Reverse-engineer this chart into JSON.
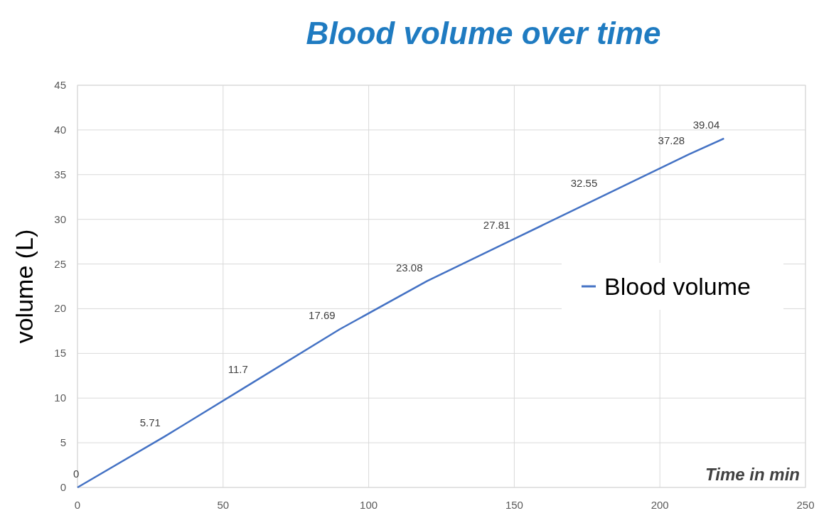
{
  "chart_data": {
    "type": "line",
    "title": "Blood volume over time",
    "xlabel": "Time in min",
    "ylabel": "volume (L)",
    "x": [
      0,
      30,
      60,
      90,
      120,
      150,
      180,
      210,
      222
    ],
    "series": [
      {
        "name": "Blood volume",
        "color": "#4472c4",
        "values": [
          0,
          5.71,
          11.7,
          17.69,
          23.08,
          27.81,
          32.55,
          37.28,
          39.04
        ]
      }
    ],
    "xlim": [
      0,
      250
    ],
    "xticks": [
      0,
      50,
      100,
      150,
      200,
      250
    ],
    "ylim": [
      0,
      45
    ],
    "yticks": [
      0,
      5,
      10,
      15,
      20,
      25,
      30,
      35,
      40,
      45
    ],
    "grid": true,
    "legend": "right",
    "data_labels": true,
    "marker": "none",
    "line_style": "solid"
  }
}
